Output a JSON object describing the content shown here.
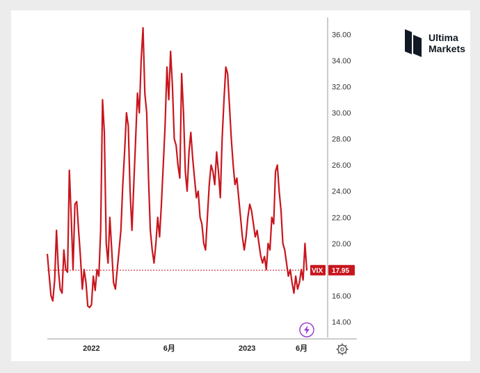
{
  "brand": {
    "line1": "Ultima",
    "line2": "Markets"
  },
  "chart_data": {
    "type": "line",
    "title": "",
    "xlabel": "",
    "ylabel": "",
    "ylim": [
      12.8,
      37.3
    ],
    "y_ticks": [
      "14.00",
      "16.00",
      "18.00",
      "20.00",
      "22.00",
      "24.00",
      "26.00",
      "28.00",
      "30.00",
      "32.00",
      "34.00",
      "36.00"
    ],
    "x_ticks": [
      {
        "label": "2022",
        "t": 0.17
      },
      {
        "label": "6月",
        "t": 0.47
      },
      {
        "label": "2023",
        "t": 0.77
      },
      {
        "label": "6月",
        "t": 0.98
      }
    ],
    "series": [
      {
        "name": "VIX",
        "color": "#c8161d",
        "current_value": 17.95,
        "values": [
          19.2,
          17.6,
          16.0,
          15.6,
          17.2,
          21.0,
          18.0,
          16.5,
          16.2,
          19.5,
          18.0,
          17.8,
          25.6,
          22.0,
          18.0,
          23.0,
          23.2,
          21.0,
          19.0,
          16.5,
          18.0,
          17.0,
          15.2,
          15.1,
          15.3,
          17.5,
          16.4,
          18.0,
          17.5,
          21.0,
          31.0,
          28.5,
          20.0,
          18.5,
          22.0,
          19.5,
          17.0,
          16.5,
          18.0,
          19.5,
          21.0,
          24.5,
          27.0,
          30.0,
          29.0,
          24.0,
          21.0,
          24.5,
          28.0,
          31.5,
          30.0,
          34.0,
          36.5,
          31.5,
          30.0,
          25.0,
          21.0,
          19.5,
          18.5,
          20.0,
          22.0,
          20.5,
          23.0,
          26.0,
          29.0,
          33.5,
          31.0,
          34.7,
          32.0,
          28.0,
          27.5,
          26.0,
          25.0,
          33.0,
          30.0,
          25.5,
          24.0,
          27.0,
          28.5,
          26.5,
          25.0,
          23.5,
          24.0,
          22.0,
          21.5,
          20.0,
          19.5,
          22.0,
          24.5,
          26.0,
          25.5,
          24.5,
          27.0,
          25.5,
          23.5,
          28.0,
          31.0,
          33.5,
          33.0,
          30.5,
          28.0,
          26.0,
          24.5,
          25.0,
          23.5,
          22.0,
          20.5,
          19.5,
          20.5,
          22.0,
          23.0,
          22.5,
          21.5,
          20.5,
          21.0,
          20.0,
          19.0,
          18.5,
          19.0,
          18.0,
          20.0,
          19.5,
          22.0,
          21.5,
          25.5,
          26.0,
          24.0,
          22.5,
          20.0,
          19.5,
          18.5,
          17.5,
          18.0,
          17.0,
          16.2,
          17.5,
          16.5,
          17.0,
          18.0,
          17.2,
          20.0,
          17.95
        ]
      }
    ]
  },
  "badge": {
    "series_label": "VIX",
    "value_label": "17.95"
  }
}
